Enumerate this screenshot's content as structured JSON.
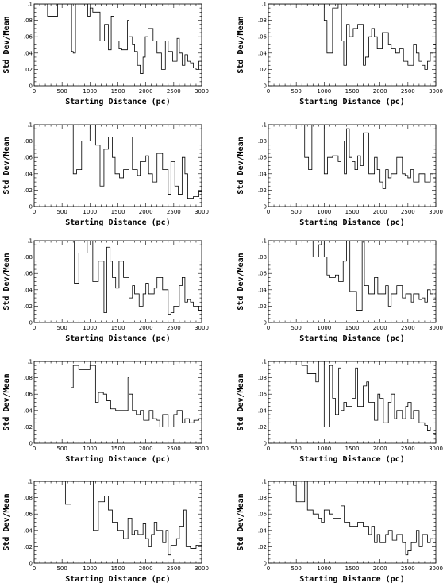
{
  "figure": {
    "xlabel": "Starting Distance (pc)",
    "ylabel": "Std Dev/Mean",
    "x_ticks": [
      0,
      500,
      1000,
      1500,
      2000,
      2500,
      3000
    ],
    "y_ticks": [
      0,
      0.02,
      0.04,
      0.06,
      0.08,
      0.1
    ],
    "y_tick_labels": [
      "0",
      ".02",
      ".04",
      ".06",
      ".08",
      ".1"
    ]
  },
  "chart_data": [
    {
      "type": "line",
      "xlabel": "Starting Distance (pc)",
      "ylabel": "Std Dev/Mean",
      "xlim": [
        0,
        3000
      ],
      "ylim": [
        0,
        0.1
      ],
      "grid": false,
      "step": true,
      "x": [
        0,
        240,
        420,
        670,
        700,
        740,
        960,
        1000,
        1050,
        1180,
        1260,
        1330,
        1380,
        1430,
        1520,
        1570,
        1670,
        1700,
        1760,
        1800,
        1850,
        1900,
        1950,
        1990,
        2040,
        2130,
        2200,
        2280,
        2350,
        2400,
        2480,
        2560,
        2600,
        2650,
        2700,
        2750,
        2800,
        2850,
        2900,
        2950,
        3000
      ],
      "y": [
        0.1,
        0.085,
        0.1,
        0.042,
        0.04,
        0.1,
        0.085,
        0.095,
        0.09,
        0.055,
        0.075,
        0.044,
        0.085,
        0.055,
        0.045,
        0.044,
        0.08,
        0.06,
        0.05,
        0.042,
        0.025,
        0.015,
        0.035,
        0.06,
        0.07,
        0.055,
        0.04,
        0.02,
        0.055,
        0.042,
        0.03,
        0.058,
        0.04,
        0.025,
        0.038,
        0.03,
        0.028,
        0.022,
        0.02,
        0.03,
        0.03
      ]
    },
    {
      "type": "line",
      "xlabel": "Starting Distance (pc)",
      "ylabel": "Std Dev/Mean",
      "xlim": [
        0,
        3000
      ],
      "ylim": [
        0,
        0.1
      ],
      "grid": false,
      "step": true,
      "x": [
        0,
        1000,
        1050,
        1150,
        1250,
        1310,
        1350,
        1400,
        1450,
        1520,
        1600,
        1700,
        1740,
        1800,
        1850,
        1900,
        1950,
        2040,
        2150,
        2200,
        2280,
        2350,
        2420,
        2500,
        2600,
        2650,
        2700,
        2750,
        2800,
        2850,
        2900,
        2950,
        3000
      ],
      "y": [
        0.1,
        0.08,
        0.04,
        0.095,
        0.1,
        0.055,
        0.025,
        0.075,
        0.06,
        0.07,
        0.075,
        0.025,
        0.035,
        0.06,
        0.07,
        0.06,
        0.045,
        0.065,
        0.05,
        0.045,
        0.04,
        0.045,
        0.03,
        0.025,
        0.05,
        0.04,
        0.03,
        0.025,
        0.02,
        0.03,
        0.04,
        0.05,
        0.04
      ]
    },
    {
      "type": "line",
      "xlabel": "Starting Distance (pc)",
      "ylabel": "Std Dev/Mean",
      "xlim": [
        0,
        3000
      ],
      "ylim": [
        0,
        0.1
      ],
      "grid": false,
      "step": true,
      "x": [
        0,
        700,
        760,
        850,
        1000,
        1100,
        1180,
        1250,
        1330,
        1400,
        1450,
        1530,
        1600,
        1700,
        1760,
        1850,
        1900,
        2000,
        2050,
        2120,
        2200,
        2300,
        2400,
        2450,
        2520,
        2580,
        2650,
        2700,
        2750,
        2850,
        2950,
        3000
      ],
      "y": [
        0.1,
        0.04,
        0.045,
        0.08,
        0.1,
        0.075,
        0.025,
        0.07,
        0.085,
        0.06,
        0.04,
        0.035,
        0.045,
        0.085,
        0.045,
        0.038,
        0.055,
        0.062,
        0.04,
        0.03,
        0.065,
        0.045,
        0.015,
        0.055,
        0.025,
        0.015,
        0.06,
        0.04,
        0.01,
        0.012,
        0.018,
        0.04
      ]
    },
    {
      "type": "line",
      "xlabel": "Starting Distance (pc)",
      "ylabel": "Std Dev/Mean",
      "xlim": [
        0,
        3000
      ],
      "ylim": [
        0,
        0.1
      ],
      "grid": false,
      "step": true,
      "x": [
        0,
        650,
        720,
        780,
        1000,
        1060,
        1150,
        1250,
        1300,
        1360,
        1400,
        1450,
        1500,
        1550,
        1600,
        1650,
        1700,
        1800,
        1900,
        1950,
        2000,
        2050,
        2100,
        2150,
        2200,
        2300,
        2400,
        2450,
        2500,
        2550,
        2600,
        2700,
        2800,
        2900,
        2950,
        3000
      ],
      "y": [
        0.1,
        0.06,
        0.045,
        0.1,
        0.04,
        0.06,
        0.062,
        0.055,
        0.08,
        0.04,
        0.095,
        0.06,
        0.055,
        0.045,
        0.062,
        0.05,
        0.09,
        0.04,
        0.06,
        0.045,
        0.03,
        0.022,
        0.045,
        0.035,
        0.04,
        0.06,
        0.04,
        0.038,
        0.035,
        0.045,
        0.03,
        0.04,
        0.03,
        0.04,
        0.035,
        0.03
      ]
    },
    {
      "type": "line",
      "xlabel": "Starting Distance (pc)",
      "ylabel": "Std Dev/Mean",
      "xlim": [
        0,
        3000
      ],
      "ylim": [
        0,
        0.1
      ],
      "grid": false,
      "step": true,
      "x": [
        0,
        720,
        800,
        950,
        1050,
        1150,
        1250,
        1300,
        1360,
        1400,
        1460,
        1520,
        1600,
        1700,
        1760,
        1800,
        1880,
        1950,
        2000,
        2050,
        2150,
        2200,
        2300,
        2400,
        2450,
        2500,
        2600,
        2650,
        2700,
        2750,
        2800,
        2850,
        2900,
        2950,
        3000
      ],
      "y": [
        0.1,
        0.048,
        0.085,
        0.1,
        0.05,
        0.075,
        0.012,
        0.092,
        0.075,
        0.055,
        0.042,
        0.075,
        0.055,
        0.03,
        0.045,
        0.035,
        0.02,
        0.035,
        0.048,
        0.035,
        0.042,
        0.055,
        0.04,
        0.01,
        0.012,
        0.02,
        0.045,
        0.055,
        0.025,
        0.028,
        0.025,
        0.02,
        0.02,
        0.015,
        0.02
      ]
    },
    {
      "type": "line",
      "xlabel": "Starting Distance (pc)",
      "ylabel": "Std Dev/Mean",
      "xlim": [
        0,
        3000
      ],
      "ylim": [
        0,
        0.1
      ],
      "grid": false,
      "step": true,
      "x": [
        0,
        800,
        900,
        950,
        1000,
        1050,
        1100,
        1200,
        1260,
        1340,
        1400,
        1460,
        1580,
        1680,
        1720,
        1800,
        1900,
        1960,
        2100,
        2150,
        2200,
        2300,
        2400,
        2460,
        2560,
        2600,
        2700,
        2750,
        2800,
        2850,
        2900,
        2950,
        3000
      ],
      "y": [
        0.1,
        0.08,
        0.095,
        0.1,
        0.08,
        0.058,
        0.055,
        0.058,
        0.05,
        0.075,
        0.1,
        0.038,
        0.015,
        0.1,
        0.045,
        0.035,
        0.055,
        0.035,
        0.045,
        0.02,
        0.035,
        0.045,
        0.03,
        0.035,
        0.025,
        0.035,
        0.028,
        0.03,
        0.025,
        0.04,
        0.035,
        0.028,
        0.038
      ]
    },
    {
      "type": "line",
      "xlabel": "Starting Distance (pc)",
      "ylabel": "Std Dev/Mean",
      "xlim": [
        0,
        3000
      ],
      "ylim": [
        0,
        0.1
      ],
      "grid": false,
      "step": true,
      "x": [
        0,
        660,
        700,
        800,
        1000,
        1100,
        1150,
        1240,
        1300,
        1370,
        1460,
        1560,
        1680,
        1700,
        1760,
        1830,
        1900,
        1960,
        2060,
        2130,
        2200,
        2250,
        2300,
        2400,
        2500,
        2560,
        2650,
        2700,
        2780,
        2860,
        2950,
        3000
      ],
      "y": [
        0.1,
        0.068,
        0.095,
        0.09,
        0.095,
        0.05,
        0.062,
        0.06,
        0.052,
        0.042,
        0.04,
        0.04,
        0.08,
        0.06,
        0.04,
        0.035,
        0.04,
        0.028,
        0.04,
        0.03,
        0.028,
        0.02,
        0.035,
        0.02,
        0.035,
        0.04,
        0.025,
        0.03,
        0.025,
        0.028,
        0.03,
        0.028
      ]
    },
    {
      "type": "line",
      "xlabel": "Starting Distance (pc)",
      "ylabel": "Std Dev/Mean",
      "xlim": [
        0,
        3000
      ],
      "ylim": [
        0,
        0.1
      ],
      "grid": false,
      "step": true,
      "x": [
        0,
        600,
        700,
        850,
        900,
        1000,
        1100,
        1150,
        1200,
        1260,
        1300,
        1350,
        1400,
        1500,
        1560,
        1600,
        1700,
        1760,
        1800,
        1900,
        1960,
        2000,
        2060,
        2150,
        2200,
        2260,
        2300,
        2400,
        2460,
        2500,
        2560,
        2600,
        2700,
        2800,
        2850,
        2900,
        2950,
        3000
      ],
      "y": [
        0.1,
        0.095,
        0.085,
        0.075,
        0.1,
        0.02,
        0.095,
        0.055,
        0.035,
        0.092,
        0.04,
        0.05,
        0.045,
        0.055,
        0.092,
        0.045,
        0.07,
        0.075,
        0.05,
        0.028,
        0.06,
        0.055,
        0.025,
        0.05,
        0.06,
        0.03,
        0.04,
        0.03,
        0.045,
        0.05,
        0.03,
        0.04,
        0.025,
        0.022,
        0.015,
        0.02,
        0.012,
        0.01
      ]
    },
    {
      "type": "line",
      "xlabel": "Starting Distance (pc)",
      "ylabel": "Std Dev/Mean",
      "xlim": [
        0,
        3000
      ],
      "ylim": [
        0,
        0.1
      ],
      "grid": false,
      "step": true,
      "x": [
        0,
        560,
        660,
        1000,
        1060,
        1150,
        1260,
        1330,
        1400,
        1500,
        1600,
        1680,
        1750,
        1800,
        1860,
        1950,
        2000,
        2050,
        2100,
        2150,
        2200,
        2300,
        2360,
        2400,
        2450,
        2550,
        2600,
        2680,
        2720,
        2800,
        2900,
        3000
      ],
      "y": [
        0.1,
        0.072,
        0.1,
        0.1,
        0.04,
        0.075,
        0.082,
        0.065,
        0.05,
        0.04,
        0.03,
        0.055,
        0.035,
        0.04,
        0.035,
        0.048,
        0.03,
        0.02,
        0.035,
        0.05,
        0.04,
        0.025,
        0.04,
        0.01,
        0.022,
        0.03,
        0.045,
        0.065,
        0.02,
        0.018,
        0.022,
        0.022
      ]
    },
    {
      "type": "line",
      "xlabel": "Starting Distance (pc)",
      "ylabel": "Std Dev/Mean",
      "xlim": [
        0,
        3000
      ],
      "ylim": [
        0,
        0.1
      ],
      "grid": false,
      "step": true,
      "x": [
        0,
        450,
        500,
        650,
        700,
        800,
        900,
        950,
        1000,
        1100,
        1160,
        1300,
        1360,
        1460,
        1600,
        1700,
        1800,
        1850,
        1900,
        1950,
        2000,
        2100,
        2150,
        2220,
        2300,
        2400,
        2460,
        2500,
        2560,
        2650,
        2700,
        2760,
        2850,
        2900,
        2950,
        3000
      ],
      "y": [
        0.1,
        0.095,
        0.075,
        0.1,
        0.065,
        0.06,
        0.055,
        0.05,
        0.065,
        0.06,
        0.055,
        0.07,
        0.05,
        0.045,
        0.05,
        0.045,
        0.035,
        0.045,
        0.025,
        0.035,
        0.025,
        0.035,
        0.04,
        0.028,
        0.035,
        0.025,
        0.01,
        0.015,
        0.025,
        0.04,
        0.02,
        0.035,
        0.025,
        0.03,
        0.025,
        0.03
      ]
    }
  ]
}
